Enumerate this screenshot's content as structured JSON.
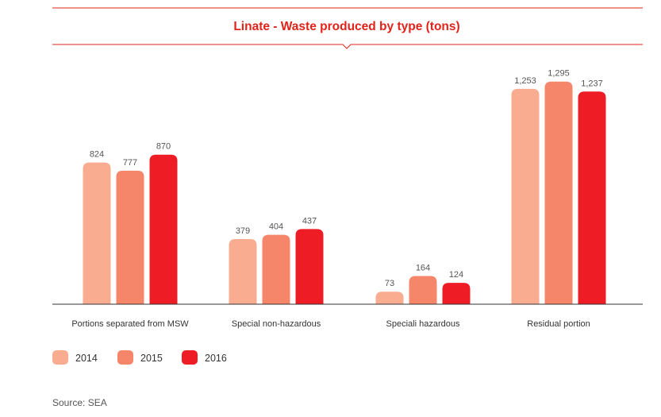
{
  "chart_data": {
    "type": "bar",
    "title": "Linate - Waste produced by type (tons)",
    "categories": [
      "Portions separated from MSW",
      "Special non-hazardous",
      "Speciali hazardous",
      "Residual portion"
    ],
    "series": [
      {
        "name": "2014",
        "color": "#f9ac90",
        "values": [
          824,
          379,
          73,
          1253
        ]
      },
      {
        "name": "2015",
        "color": "#f5866a",
        "values": [
          777,
          404,
          164,
          1295
        ]
      },
      {
        "name": "2016",
        "color": "#ee1c25",
        "values": [
          870,
          437,
          124,
          1237
        ]
      }
    ],
    "value_labels": [
      [
        "824",
        "379",
        "73",
        "1,253"
      ],
      [
        "777",
        "404",
        "164",
        "1,295"
      ],
      [
        "870",
        "437",
        "124",
        "1,237"
      ]
    ],
    "ylim": [
      0,
      1340
    ],
    "xlabel": "",
    "ylabel": "",
    "grid": false,
    "legend_position": "bottom-left",
    "source": "Source: SEA",
    "colors": {
      "title": "#e2231a",
      "rule": "#e2231a",
      "axis": "#333333"
    }
  }
}
